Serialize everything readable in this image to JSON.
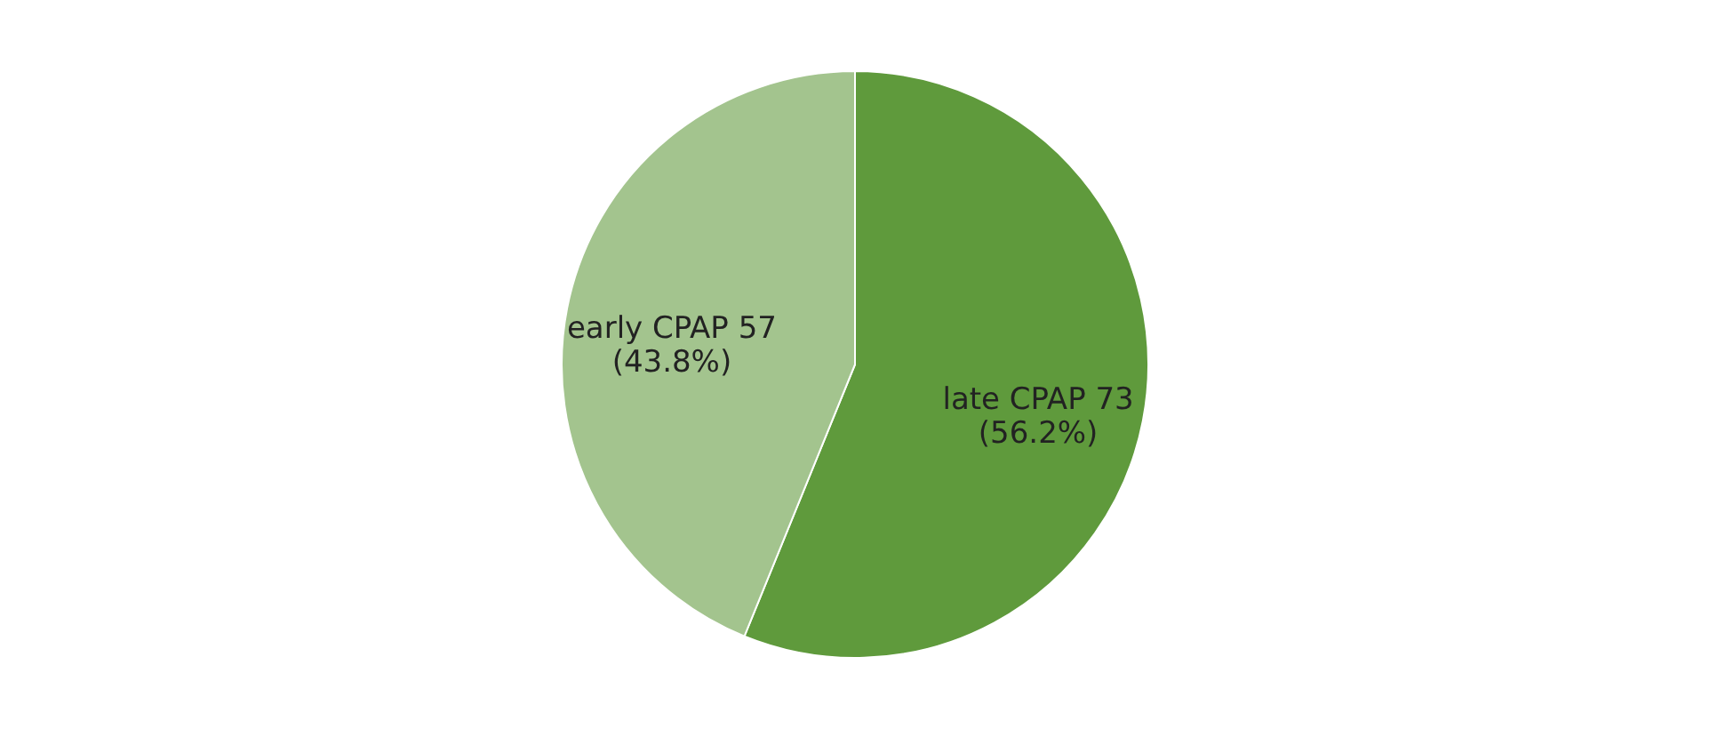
{
  "chart_data": {
    "type": "pie",
    "categories": [
      "late CPAP",
      "early CPAP"
    ],
    "values": [
      73,
      57
    ],
    "colors": [
      "#5f9a3c",
      "#a3c48e"
    ],
    "value_labels": [
      "73 (56.2%)",
      "57 (43.8%)"
    ],
    "legend": false
  }
}
